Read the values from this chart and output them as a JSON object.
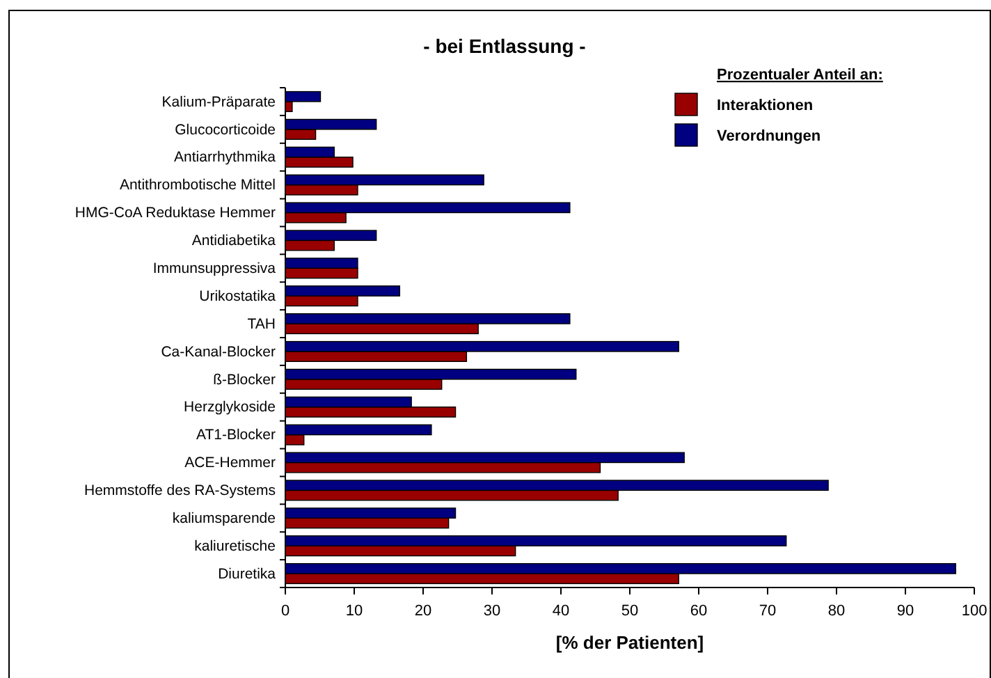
{
  "chart_data": {
    "type": "bar",
    "orientation": "horizontal",
    "title": "- bei Entlassung -",
    "xlabel": "[% der Patienten]",
    "legend_title": "Prozentualer Anteil an:",
    "legend": "top right",
    "categories": [
      "Kalium-Präparate",
      "Glucocorticoide",
      "Antiarrhythmika",
      "Antithrombotische Mittel",
      "HMG-CoA Reduktase Hemmer",
      "Antidiabetika",
      "Immunsuppressiva",
      "Urikostatika",
      "TAH",
      "Ca-Kanal-Blocker",
      "ß-Blocker",
      "Herzglykoside",
      "AT1-Blocker",
      "ACE-Hemmer",
      "Hemmstoffe des RA-Systems",
      "kaliumsparende",
      "kaliuretische",
      "Diuretika"
    ],
    "series": [
      {
        "name": "Interaktionen",
        "color": "#990000",
        "values": [
          1,
          4.4,
          9.8,
          10.5,
          8.8,
          7.1,
          10.5,
          10.5,
          28,
          26.3,
          22.7,
          24.7,
          2.7,
          45.7,
          48.3,
          23.7,
          33.4,
          57.1
        ]
      },
      {
        "name": "Verordnungen",
        "color": "#000080",
        "values": [
          5.1,
          13.2,
          7.1,
          28.8,
          41.3,
          13.2,
          10.5,
          16.6,
          41.3,
          57.1,
          42.2,
          18.3,
          21.2,
          57.9,
          78.8,
          24.7,
          72.7,
          97.3
        ]
      }
    ],
    "xlim": [
      0,
      100
    ],
    "xticks": [
      0,
      10,
      20,
      30,
      40,
      50,
      60,
      70,
      80,
      90,
      100
    ],
    "grid": false
  }
}
